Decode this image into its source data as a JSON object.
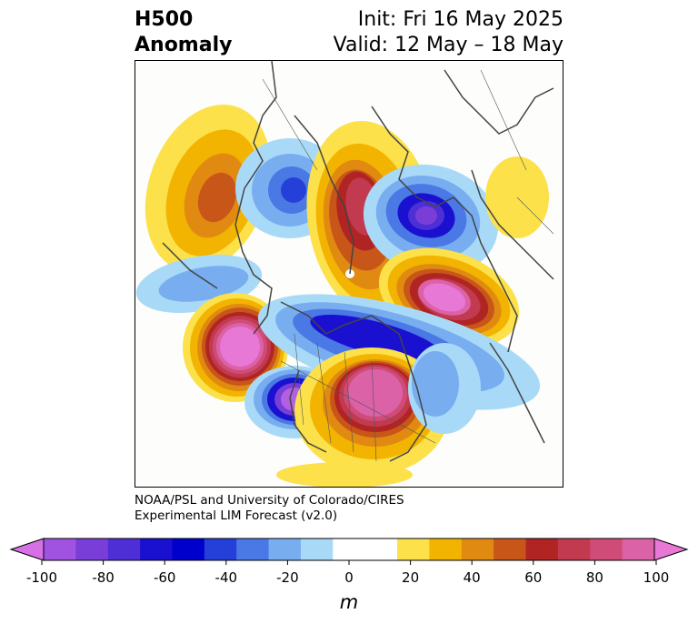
{
  "header": {
    "title_line1": "H500",
    "title_line2": "Anomaly",
    "init_text": "Init: Fri 16 May 2025",
    "valid_text": "Valid: 12 May – 18 May"
  },
  "credit": {
    "line1": "NOAA/PSL and University of Colorado/CIRES",
    "line2": "Experimental LIM Forecast (v2.0)"
  },
  "colorbar": {
    "unit": "m",
    "ticks": [
      "-100",
      "-80",
      "-60",
      "-40",
      "-20",
      "0",
      "20",
      "40",
      "60",
      "80",
      "100"
    ],
    "colors": [
      "#a052e0",
      "#7a3ed8",
      "#4e2fd6",
      "#1a10d0",
      "#0000cc",
      "#2440d8",
      "#4a78e4",
      "#78aef0",
      "#a8daf8",
      "#ffffff",
      "#ffffff",
      "#fce14a",
      "#f2b400",
      "#e08a12",
      "#c85618",
      "#b02424",
      "#c23a50",
      "#d04c78",
      "#dc62a8"
    ],
    "min_color": "#d670e6",
    "max_color": "#e878d6"
  },
  "map": {
    "colors": {
      "neg_light": "#a8daf8",
      "neg_mid": "#78aef0",
      "neg_blue": "#4a78e4",
      "neg_deep": "#1a10d0",
      "neg_core": "#7a3ed8",
      "neg_center": "#b060e0",
      "pos_yellow": "#fce14a",
      "pos_gold": "#f2b400",
      "pos_orange": "#e08a12",
      "pos_rust": "#c85618",
      "pos_red": "#b02424",
      "pos_rose": "#c23a50",
      "pos_pink": "#dc62a8",
      "pos_center": "#e878d6",
      "coast": "#444444"
    }
  }
}
